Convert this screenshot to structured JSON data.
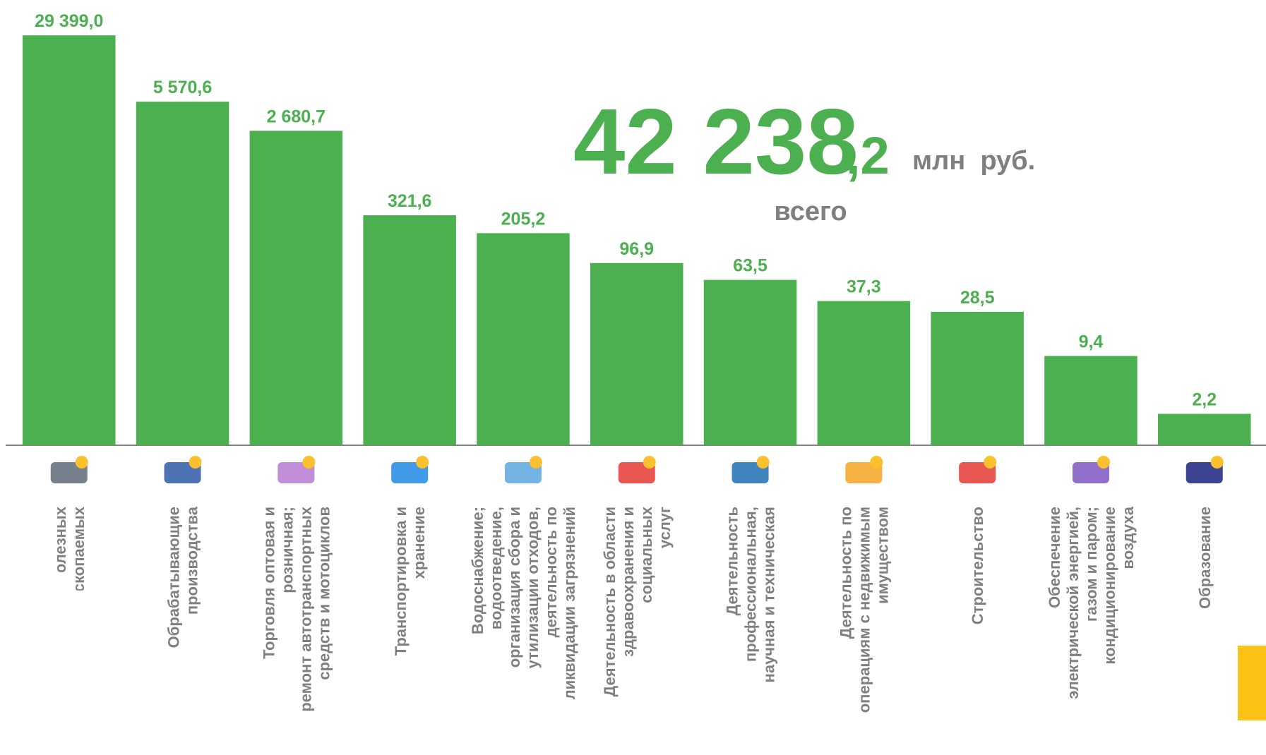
{
  "chart_data": {
    "type": "bar",
    "headline": {
      "integer": "42 238",
      "fraction": ",2",
      "unit": "млн  руб.",
      "caption": "всего"
    },
    "categories": [
      [
        "Добыча полезных",
        "ископаемых"
      ],
      [
        "Обрабатывающие",
        "производства"
      ],
      [
        "Торговля оптовая и",
        "розничная;",
        "ремонт автотранспортных",
        "средств и мотоциклов"
      ],
      [
        "Транспортировка и",
        "хранение"
      ],
      [
        "Водоснабжение;",
        "водоотведение,",
        "организация сбора и",
        "утилизации отходов,",
        "деятельность по",
        "ликвидации загрязнений"
      ],
      [
        "Деятельность в области",
        "здравоохранения и",
        "социальных",
        "услуг"
      ],
      [
        "Деятельность",
        "профессиональная,",
        "научная и техническая"
      ],
      [
        "Деятельность по",
        "операциям с недвижимым",
        "имуществом"
      ],
      [
        "Строительство"
      ],
      [
        "Обеспечение",
        "электрической энергией,",
        "газом и паром;",
        "кондиционирование",
        "воздуха"
      ],
      [
        "Образование"
      ]
    ],
    "values": [
      29399.0,
      5570.6,
      2680.7,
      321.6,
      205.2,
      96.9,
      63.5,
      37.3,
      28.5,
      9.4,
      2.2
    ],
    "value_labels": [
      "29 399,0",
      "5 570,6",
      "2 680,7",
      "321,6",
      "205,2",
      "96,9",
      "63,5",
      "37,3",
      "28,5",
      "9,4",
      "2,2"
    ],
    "color": "#4caf50",
    "log": true,
    "ylim": [
      1,
      30000
    ]
  }
}
